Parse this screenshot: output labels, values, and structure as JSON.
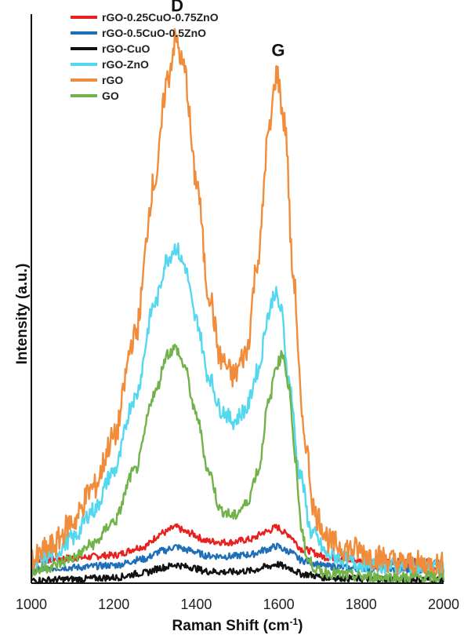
{
  "chart_data": {
    "type": "line",
    "xlabel": "Raman Shift (cm",
    "xlabel_sup": "-1",
    "xlabel_close": ")",
    "ylabel": "Intensity (a.u.)",
    "xlim": [
      1000,
      2000
    ],
    "xticks": [
      "1000",
      "1200",
      "1400",
      "1600",
      "1800",
      "2000"
    ],
    "ylim": [
      0,
      100
    ],
    "grid": false,
    "legend_position": "top-left",
    "annotations": [
      {
        "text": "D",
        "x": 1350,
        "y": 103
      },
      {
        "text": "G",
        "x": 1595,
        "y": 95
      }
    ],
    "series": [
      {
        "name": "rGO-0.25CuO-0.75ZnO",
        "color": "#e8201e",
        "points": [
          [
            1000,
            4.0
          ],
          [
            1100,
            4.5
          ],
          [
            1200,
            5.0
          ],
          [
            1270,
            6.5
          ],
          [
            1320,
            9.0
          ],
          [
            1350,
            10.0
          ],
          [
            1380,
            9.0
          ],
          [
            1430,
            7.5
          ],
          [
            1480,
            7.3
          ],
          [
            1530,
            7.8
          ],
          [
            1570,
            9.2
          ],
          [
            1595,
            10.0
          ],
          [
            1620,
            8.8
          ],
          [
            1660,
            6.0
          ],
          [
            1720,
            4.6
          ],
          [
            1800,
            4.0
          ],
          [
            1900,
            3.8
          ],
          [
            2000,
            3.7
          ]
        ]
      },
      {
        "name": "rGO-0.5CuO-0.5ZnO",
        "color": "#1f6fb8",
        "points": [
          [
            1000,
            2.5
          ],
          [
            1100,
            2.8
          ],
          [
            1200,
            3.2
          ],
          [
            1270,
            4.3
          ],
          [
            1320,
            5.8
          ],
          [
            1350,
            6.5
          ],
          [
            1380,
            5.9
          ],
          [
            1430,
            4.9
          ],
          [
            1480,
            4.8
          ],
          [
            1530,
            5.1
          ],
          [
            1570,
            6.0
          ],
          [
            1595,
            6.6
          ],
          [
            1620,
            5.8
          ],
          [
            1660,
            4.0
          ],
          [
            1720,
            3.0
          ],
          [
            1800,
            2.6
          ],
          [
            1900,
            2.4
          ],
          [
            2000,
            2.3
          ]
        ]
      },
      {
        "name": "rGO-CuO",
        "color": "#111111",
        "points": [
          [
            1000,
            0.5
          ],
          [
            1100,
            0.7
          ],
          [
            1200,
            1.0
          ],
          [
            1270,
            1.8
          ],
          [
            1320,
            2.8
          ],
          [
            1350,
            3.3
          ],
          [
            1380,
            2.9
          ],
          [
            1430,
            2.1
          ],
          [
            1480,
            2.0
          ],
          [
            1530,
            2.2
          ],
          [
            1570,
            2.9
          ],
          [
            1595,
            3.4
          ],
          [
            1620,
            2.8
          ],
          [
            1660,
            1.6
          ],
          [
            1720,
            1.0
          ],
          [
            1800,
            0.8
          ],
          [
            1900,
            0.7
          ],
          [
            2000,
            0.6
          ]
        ]
      },
      {
        "name": "rGO-ZnO",
        "color": "#54d8f0",
        "points": [
          [
            1000,
            3.0
          ],
          [
            1050,
            5.0
          ],
          [
            1100,
            8.0
          ],
          [
            1150,
            13.0
          ],
          [
            1200,
            20.0
          ],
          [
            1250,
            33.0
          ],
          [
            1300,
            50.0
          ],
          [
            1330,
            58.0
          ],
          [
            1350,
            60.0
          ],
          [
            1370,
            57.0
          ],
          [
            1400,
            47.0
          ],
          [
            1430,
            37.0
          ],
          [
            1460,
            31.0
          ],
          [
            1490,
            29.0
          ],
          [
            1520,
            31.0
          ],
          [
            1550,
            38.0
          ],
          [
            1575,
            48.0
          ],
          [
            1590,
            52.0
          ],
          [
            1605,
            49.0
          ],
          [
            1625,
            36.0
          ],
          [
            1650,
            20.0
          ],
          [
            1680,
            9.0
          ],
          [
            1720,
            5.0
          ],
          [
            1800,
            3.5
          ],
          [
            1900,
            3.0
          ],
          [
            2000,
            2.8
          ]
        ]
      },
      {
        "name": "rGO",
        "color": "#f08c3a",
        "points": [
          [
            1000,
            4.0
          ],
          [
            1050,
            6.5
          ],
          [
            1100,
            11.0
          ],
          [
            1150,
            17.0
          ],
          [
            1200,
            26.0
          ],
          [
            1250,
            44.0
          ],
          [
            1300,
            72.0
          ],
          [
            1330,
            90.0
          ],
          [
            1350,
            97.0
          ],
          [
            1370,
            92.0
          ],
          [
            1400,
            72.0
          ],
          [
            1430,
            52.0
          ],
          [
            1460,
            40.0
          ],
          [
            1490,
            37.0
          ],
          [
            1520,
            41.0
          ],
          [
            1550,
            58.0
          ],
          [
            1575,
            80.0
          ],
          [
            1595,
            91.0
          ],
          [
            1615,
            82.0
          ],
          [
            1635,
            55.0
          ],
          [
            1660,
            27.0
          ],
          [
            1690,
            12.0
          ],
          [
            1730,
            7.0
          ],
          [
            1780,
            6.0
          ],
          [
            1850,
            4.5
          ],
          [
            1900,
            3.5
          ],
          [
            2000,
            3.2
          ]
        ]
      },
      {
        "name": "GO",
        "color": "#72b24a",
        "points": [
          [
            1000,
            2.0
          ],
          [
            1050,
            3.0
          ],
          [
            1100,
            4.5
          ],
          [
            1150,
            7.0
          ],
          [
            1200,
            11.0
          ],
          [
            1250,
            20.0
          ],
          [
            1300,
            34.0
          ],
          [
            1330,
            41.0
          ],
          [
            1350,
            42.0
          ],
          [
            1370,
            39.0
          ],
          [
            1400,
            30.0
          ],
          [
            1430,
            20.0
          ],
          [
            1460,
            13.0
          ],
          [
            1490,
            12.0
          ],
          [
            1520,
            14.0
          ],
          [
            1550,
            20.0
          ],
          [
            1575,
            32.0
          ],
          [
            1595,
            39.0
          ],
          [
            1610,
            41.0
          ],
          [
            1625,
            35.0
          ],
          [
            1640,
            22.0
          ],
          [
            1655,
            10.0
          ],
          [
            1670,
            4.0
          ],
          [
            1700,
            2.0
          ],
          [
            1800,
            1.2
          ],
          [
            1900,
            1.0
          ],
          [
            2000,
            1.0
          ]
        ]
      }
    ]
  }
}
